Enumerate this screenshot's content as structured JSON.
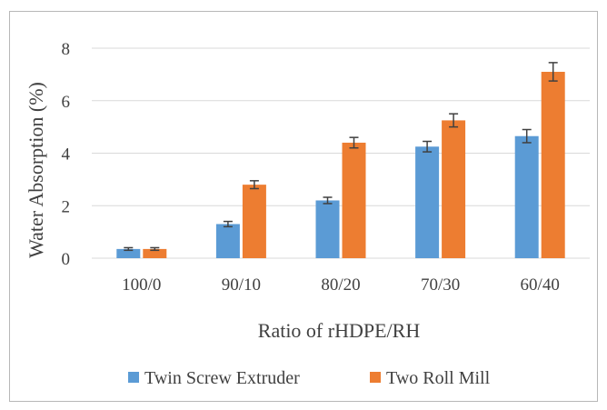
{
  "chart_data": {
    "type": "bar",
    "title": "",
    "xlabel": "Ratio of rHDPE/RH",
    "ylabel": "Water Absorption (%)",
    "ylim": [
      0,
      8
    ],
    "yticks": [
      0,
      2,
      4,
      6,
      8
    ],
    "grid": true,
    "legend_position": "bottom",
    "categories": [
      "100/0",
      "90/10",
      "80/20",
      "70/30",
      "60/40"
    ],
    "series": [
      {
        "name": "Twin Screw Extruder",
        "color": "#5b9bd5",
        "values": [
          0.35,
          1.3,
          2.2,
          4.25,
          4.65
        ],
        "errors": [
          0.05,
          0.1,
          0.12,
          0.2,
          0.25
        ]
      },
      {
        "name": "Two Roll Mill",
        "color": "#ed7d31",
        "values": [
          0.35,
          2.8,
          4.4,
          5.25,
          7.1
        ],
        "errors": [
          0.05,
          0.15,
          0.2,
          0.25,
          0.35
        ]
      }
    ]
  }
}
